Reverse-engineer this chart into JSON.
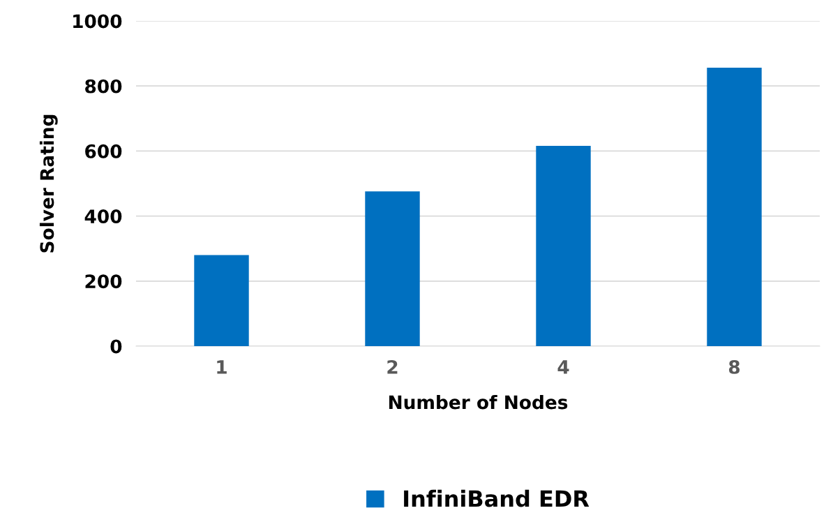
{
  "chart_data": {
    "type": "bar",
    "xlabel": "Number of Nodes",
    "ylabel": "Solver Rating",
    "categories": [
      "1",
      "2",
      "4",
      "8"
    ],
    "series": [
      {
        "name": "InfiniBand EDR",
        "color": "#0070c0",
        "values": [
          280,
          476,
          616,
          856
        ]
      }
    ],
    "ylim": [
      0,
      1000
    ],
    "yticks": [
      0,
      200,
      400,
      600,
      800,
      1000
    ],
    "grid": "y",
    "legend": "bottom"
  }
}
